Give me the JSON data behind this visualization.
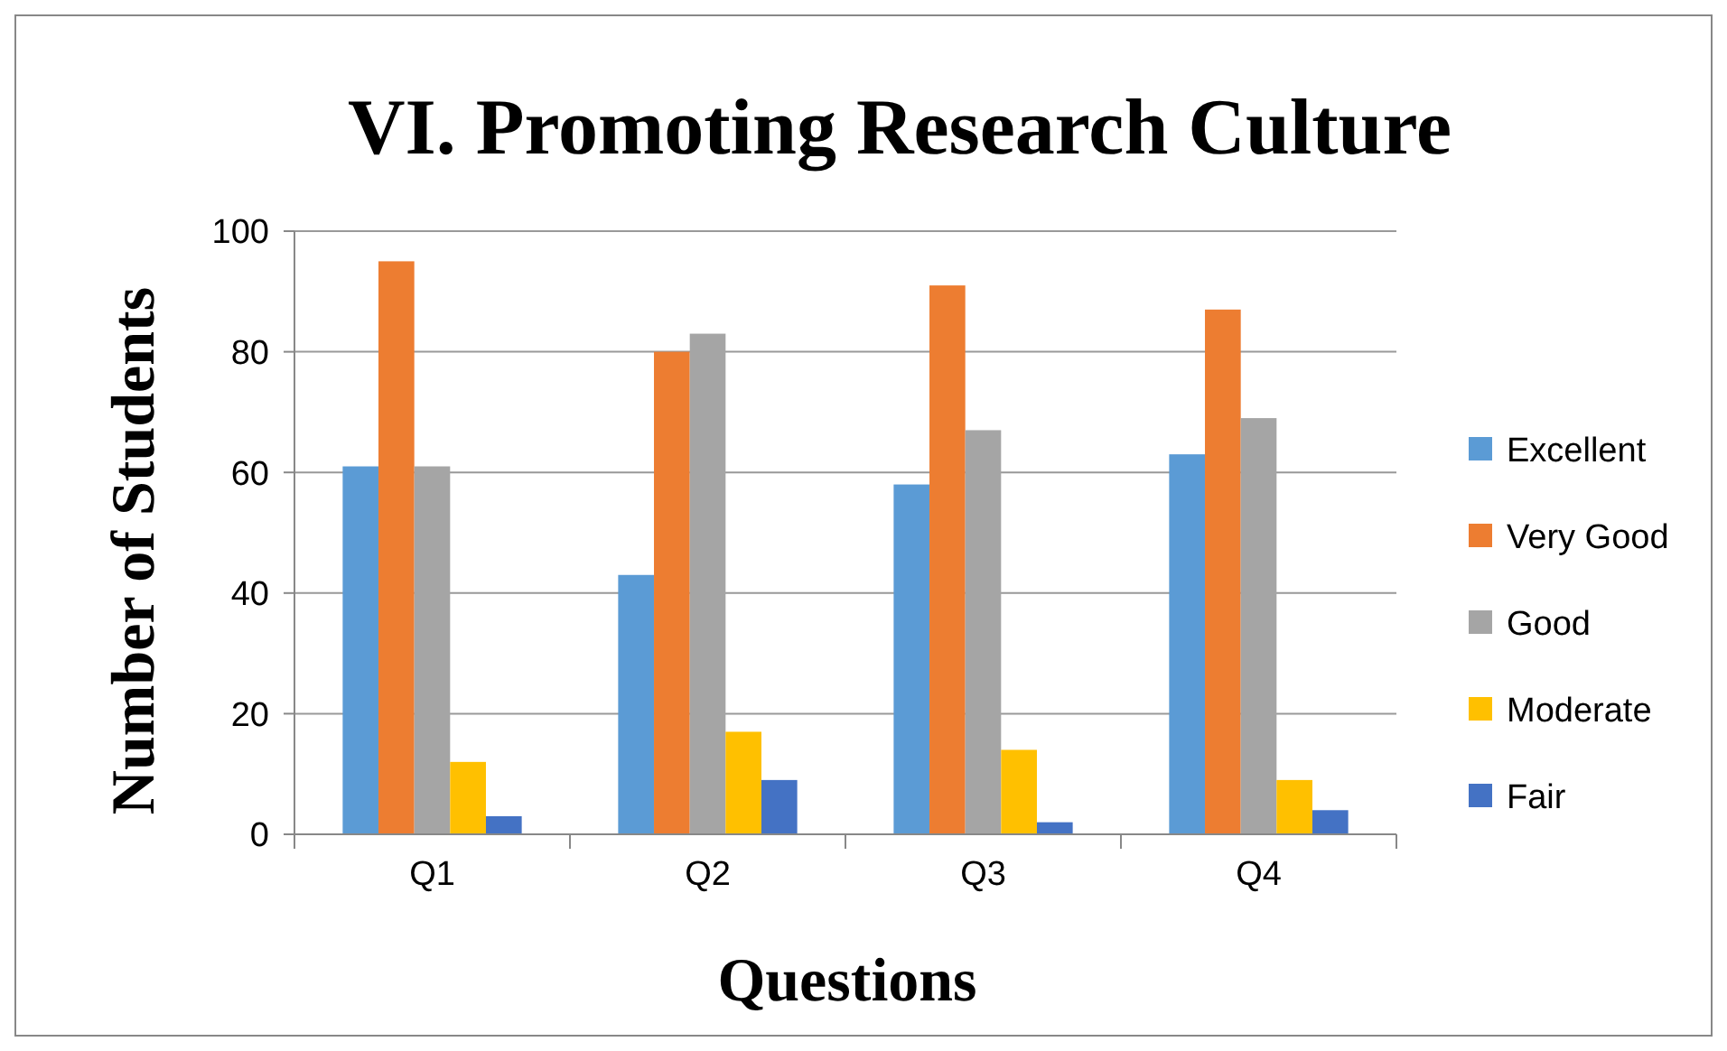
{
  "chart_data": {
    "type": "bar",
    "title": "VI. Promoting Research Culture",
    "xlabel": "Questions",
    "ylabel": "Number of Students",
    "categories": [
      "Q1",
      "Q2",
      "Q3",
      "Q4"
    ],
    "series": [
      {
        "name": "Excellent",
        "color": "#5b9bd5",
        "values": [
          61,
          43,
          58,
          63
        ]
      },
      {
        "name": "Very Good",
        "color": "#ed7d31",
        "values": [
          95,
          80,
          91,
          87
        ]
      },
      {
        "name": "Good",
        "color": "#a5a5a5",
        "values": [
          61,
          83,
          67,
          69
        ]
      },
      {
        "name": "Moderate",
        "color": "#ffc000",
        "values": [
          12,
          17,
          14,
          9
        ]
      },
      {
        "name": "Fair",
        "color": "#4472c4",
        "values": [
          3,
          9,
          2,
          4
        ]
      }
    ],
    "ylim": [
      0,
      100
    ],
    "yticks": [
      0,
      20,
      40,
      60,
      80,
      100
    ],
    "grid": "y",
    "legend": "right"
  }
}
